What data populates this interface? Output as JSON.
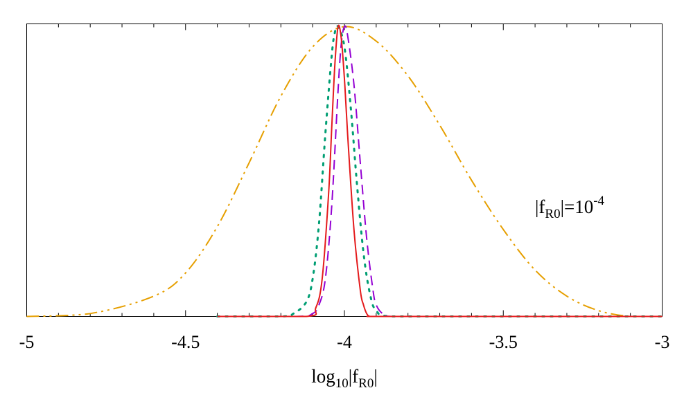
{
  "chart_data": {
    "type": "line",
    "title": "",
    "xlabel": {
      "base": "log",
      "base_sub": "10",
      "body": "|f",
      "body_sub": "R0",
      "tail": "|"
    },
    "ylabel": "",
    "xlim": [
      -5,
      -3
    ],
    "ylim": [
      0,
      1
    ],
    "x_ticks": [
      -5,
      -4.5,
      -4,
      -3.5,
      -3
    ],
    "x_tick_labels": [
      "-5",
      "-4.5",
      "-4",
      "-3.5",
      "-3"
    ],
    "grid": false,
    "annotation": {
      "base": "|f",
      "sub": "R0",
      "mid": "|=10",
      "sup": "-4"
    },
    "series": [
      {
        "color": "#e69f00",
        "dash": "dash-dot-dot",
        "x_range": [
          -5,
          -3
        ],
        "values": {
          "x": [
            -5.0,
            -4.8,
            -4.6,
            -4.5,
            -4.4,
            -4.3,
            -4.2,
            -4.1,
            -4.0,
            -3.9,
            -3.8,
            -3.7,
            -3.6,
            -3.5,
            -3.4,
            -3.3,
            -3.2,
            -3.1,
            -3.0
          ],
          "y": [
            0.0,
            0.01,
            0.07,
            0.15,
            0.31,
            0.53,
            0.76,
            0.93,
            1.0,
            0.95,
            0.83,
            0.66,
            0.47,
            0.3,
            0.16,
            0.07,
            0.02,
            0.0,
            0.0
          ]
        }
      },
      {
        "color": "#009e73",
        "dash": "dot",
        "x_range": [
          -4.4,
          -3
        ],
        "values": {
          "x": [
            -4.4,
            -4.2,
            -4.16,
            -4.12,
            -4.1,
            -4.08,
            -4.06,
            -4.04,
            -4.03,
            -4.02,
            -4.0,
            -3.98,
            -3.96,
            -3.94,
            -3.92,
            -3.9,
            -3.85,
            -3.6,
            -3.0
          ],
          "y": [
            0.0,
            0.0,
            0.01,
            0.05,
            0.13,
            0.32,
            0.63,
            0.9,
            0.98,
            1.0,
            0.93,
            0.72,
            0.45,
            0.22,
            0.08,
            0.02,
            0.0,
            0.0,
            0.0
          ]
        }
      },
      {
        "color": "#9400d3",
        "dash": "dash",
        "x_range": [
          -4.4,
          -3
        ],
        "values": {
          "x": [
            -4.4,
            -4.15,
            -4.1,
            -4.08,
            -4.06,
            -4.04,
            -4.02,
            -4.01,
            -4.0,
            -3.99,
            -3.97,
            -3.95,
            -3.93,
            -3.91,
            -3.9,
            -3.88,
            -3.85,
            -3.6,
            -3.0
          ],
          "y": [
            0.0,
            0.0,
            0.01,
            0.04,
            0.13,
            0.38,
            0.78,
            0.94,
            1.0,
            0.97,
            0.8,
            0.53,
            0.27,
            0.09,
            0.04,
            0.01,
            0.0,
            0.0,
            0.0
          ]
        }
      },
      {
        "color": "#e41a1c",
        "dash": "solid",
        "x_range": [
          -4.4,
          -3
        ],
        "values": {
          "x": [
            -4.4,
            -4.12,
            -4.09,
            -4.07,
            -4.05,
            -4.04,
            -4.03,
            -4.02,
            -4.01,
            -4.0,
            -3.99,
            -3.97,
            -3.95,
            -3.94,
            -3.93,
            -3.92,
            -3.9,
            -3.6,
            -3.0
          ],
          "y": [
            0.0,
            0.0,
            0.03,
            0.13,
            0.42,
            0.65,
            0.87,
            1.0,
            0.96,
            0.82,
            0.63,
            0.3,
            0.09,
            0.04,
            0.01,
            0.0,
            0.0,
            0.0,
            0.0
          ]
        }
      }
    ]
  }
}
